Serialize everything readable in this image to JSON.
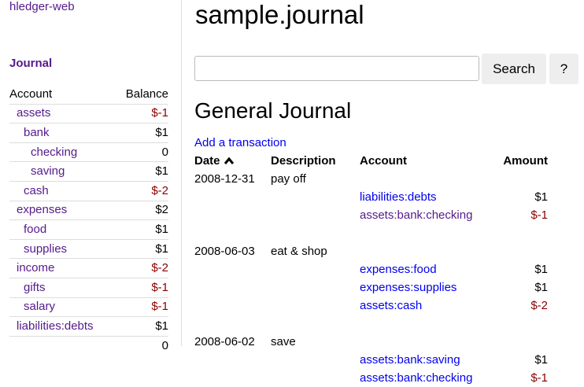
{
  "sidebar": {
    "brand": "hledger-web",
    "journal_link": "Journal",
    "headers": {
      "account": "Account",
      "balance": "Balance"
    },
    "accounts": [
      {
        "name": "assets",
        "balance": "$-1",
        "depth": 0,
        "negative": true
      },
      {
        "name": "bank",
        "balance": "$1",
        "depth": 1,
        "negative": false
      },
      {
        "name": "checking",
        "balance": "0",
        "depth": 2,
        "negative": false
      },
      {
        "name": "saving",
        "balance": "$1",
        "depth": 2,
        "negative": false
      },
      {
        "name": "cash",
        "balance": "$-2",
        "depth": 1,
        "negative": true
      },
      {
        "name": "expenses",
        "balance": "$2",
        "depth": 0,
        "negative": false
      },
      {
        "name": "food",
        "balance": "$1",
        "depth": 1,
        "negative": false
      },
      {
        "name": "supplies",
        "balance": "$1",
        "depth": 1,
        "negative": false
      },
      {
        "name": "income",
        "balance": "$-2",
        "depth": 0,
        "negative": true
      },
      {
        "name": "gifts",
        "balance": "$-1",
        "depth": 1,
        "negative": true
      },
      {
        "name": "salary",
        "balance": "$-1",
        "depth": 1,
        "negative": true
      },
      {
        "name": "liabilities:debts",
        "balance": "$1",
        "depth": 0,
        "negative": false
      }
    ],
    "total": "0"
  },
  "main": {
    "title": "sample.journal",
    "search": {
      "value": "",
      "button": "Search",
      "help": "?"
    },
    "heading": "General Journal",
    "add_link": "Add a transaction",
    "columns": {
      "date": "Date",
      "sort_icon": "chevron-up-icon",
      "description": "Description",
      "account": "Account",
      "amount": "Amount"
    },
    "transactions": [
      {
        "date": "2008-12-31",
        "description": "pay off",
        "postings": [
          {
            "account": "liabilities:debts",
            "amount": "$1",
            "visited": false,
            "negative": false
          },
          {
            "account": "assets:bank:checking",
            "amount": "$-1",
            "visited": true,
            "negative": true
          }
        ]
      },
      {
        "date": "2008-06-03",
        "description": "eat & shop",
        "postings": [
          {
            "account": "expenses:food",
            "amount": "$1",
            "visited": false,
            "negative": false
          },
          {
            "account": "expenses:supplies",
            "amount": "$1",
            "visited": false,
            "negative": false
          },
          {
            "account": "assets:cash",
            "amount": "$-2",
            "visited": false,
            "negative": true
          }
        ]
      },
      {
        "date": "2008-06-02",
        "description": "save",
        "postings": [
          {
            "account": "assets:bank:saving",
            "amount": "$1",
            "visited": false,
            "negative": false
          },
          {
            "account": "assets:bank:checking",
            "amount": "$-1",
            "visited": false,
            "negative": true
          }
        ]
      }
    ]
  },
  "colors": {
    "visited_link": "#551a8b",
    "link": "#0000ee",
    "negative": "#8b0000"
  }
}
